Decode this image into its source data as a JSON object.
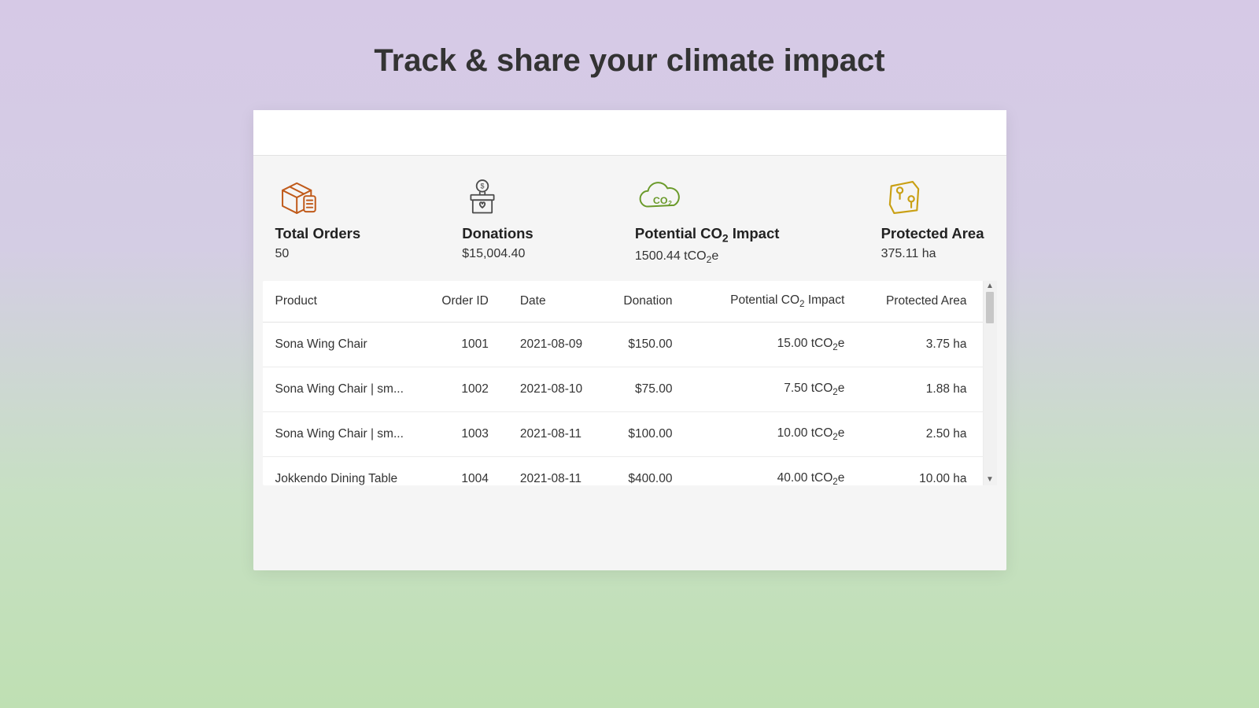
{
  "page": {
    "title": "Track & share your climate impact"
  },
  "colors": {
    "orders_icon": "#c05a1a",
    "donations_icon": "#4a4a4a",
    "co2_icon": "#6a9a2a",
    "area_icon": "#c9a015",
    "text_primary": "#333333",
    "card_bg": "#f5f5f5",
    "white": "#ffffff",
    "border": "#e4e4e4"
  },
  "stats": {
    "orders": {
      "label": "Total Orders",
      "value": "50"
    },
    "donations": {
      "label": "Donations",
      "value": "$15,004.40"
    },
    "co2": {
      "label_pre": "Potential CO",
      "label_post": " Impact",
      "value_pre": "1500.44 tCO",
      "value_post": "e"
    },
    "area": {
      "label": "Protected Area",
      "value": "375.11 ha"
    }
  },
  "table": {
    "columns": {
      "product": "Product",
      "order_id": "Order ID",
      "date": "Date",
      "donation": "Donation",
      "impact_pre": "Potential CO",
      "impact_post": " Impact",
      "area": "Protected Area"
    },
    "rows": [
      {
        "product": "Sona Wing Chair",
        "order_id": "1001",
        "date": "2021-08-09",
        "donation": "$150.00",
        "impact_pre": "15.00 tCO",
        "impact_post": "e",
        "area": "3.75 ha"
      },
      {
        "product": "Sona Wing Chair | sm...",
        "order_id": "1002",
        "date": "2021-08-10",
        "donation": "$75.00",
        "impact_pre": "7.50 tCO",
        "impact_post": "e",
        "area": "1.88 ha"
      },
      {
        "product": "Sona Wing Chair | sm...",
        "order_id": "1003",
        "date": "2021-08-11",
        "donation": "$100.00",
        "impact_pre": "10.00 tCO",
        "impact_post": "e",
        "area": "2.50 ha"
      },
      {
        "product": "Jokkendo Dining Table",
        "order_id": "1004",
        "date": "2021-08-11",
        "donation": "$400.00",
        "impact_pre": "40.00 tCO",
        "impact_post": "e",
        "area": "10.00 ha"
      }
    ]
  }
}
